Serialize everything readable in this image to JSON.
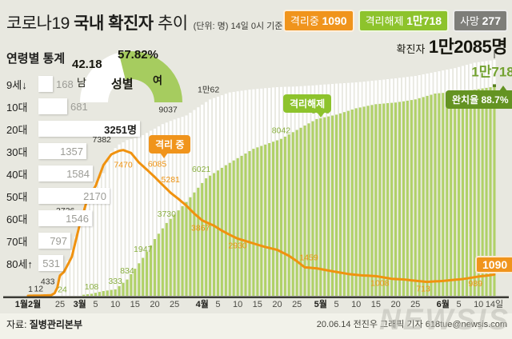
{
  "header": {
    "title": {
      "prefix": "코로나19",
      "bold": "국내 확진자",
      "suffix": "추이"
    },
    "note": "(단위: 명) 14일 0시 기준",
    "badges": [
      {
        "label": "격리중",
        "value": "1090",
        "color": "#f0941c"
      },
      {
        "label": "격리해제",
        "value": "1만718",
        "color": "#8dc32c"
      },
      {
        "label": "사망",
        "value": "277",
        "color": "#7e7e79"
      }
    ],
    "total_label": "확진자",
    "total_value": "1만2085명"
  },
  "gender": {
    "title": "성별",
    "male_label": "남",
    "male_value": "42.18",
    "male_pct": 42.18,
    "female_label": "여",
    "female_value": "57.82%",
    "female_pct": 57.82,
    "female_color": "#a6cc5f",
    "male_color": "#ffffff"
  },
  "age_panel": {
    "title": "연령별 통계",
    "max": 3251,
    "rows": [
      {
        "label": "9세↓",
        "value": "168",
        "num": 168,
        "outside": true
      },
      {
        "label": "10대",
        "value": "681",
        "num": 681,
        "outside": true
      },
      {
        "label": "20대",
        "value": "3251명",
        "num": 3251,
        "highlight": true
      },
      {
        "label": "30대",
        "value": "1357",
        "num": 1357
      },
      {
        "label": "40대",
        "value": "1584",
        "num": 1584
      },
      {
        "label": "50대",
        "value": "2170",
        "num": 2170
      },
      {
        "label": "60대",
        "value": "1546",
        "num": 1546
      },
      {
        "label": "70대",
        "value": "797",
        "num": 797
      },
      {
        "label": "80세↑",
        "value": "531",
        "num": 531
      }
    ]
  },
  "chart_data": {
    "type": "combo",
    "unit": "명",
    "y_max": 12085,
    "x_start": "1월20일",
    "x_end": "6월14일(0시 기준)",
    "ticks": [
      {
        "label": "1월2월",
        "day": 0,
        "month": true
      },
      {
        "label": "25",
        "day": 36
      },
      {
        "label": "3월",
        "day": 41,
        "month": true
      },
      {
        "label": "5",
        "day": 45
      },
      {
        "label": "10",
        "day": 50
      },
      {
        "label": "15",
        "day": 55
      },
      {
        "label": "20",
        "day": 60
      },
      {
        "label": "25",
        "day": 65
      },
      {
        "label": "4월",
        "day": 72,
        "month": true
      },
      {
        "label": "5",
        "day": 76
      },
      {
        "label": "10",
        "day": 81
      },
      {
        "label": "15",
        "day": 86
      },
      {
        "label": "20",
        "day": 91
      },
      {
        "label": "25",
        "day": 96
      },
      {
        "label": "5월",
        "day": 102,
        "month": true
      },
      {
        "label": "5",
        "day": 106
      },
      {
        "label": "10",
        "day": 111
      },
      {
        "label": "15",
        "day": 116
      },
      {
        "label": "20",
        "day": 121
      },
      {
        "label": "25",
        "day": 126
      },
      {
        "label": "6월",
        "day": 133,
        "month": true
      },
      {
        "label": "5",
        "day": 137
      },
      {
        "label": "10",
        "day": 142
      },
      {
        "label": "14일",
        "day": 146
      }
    ],
    "series": [
      {
        "name": "확진자 누적",
        "kind": "bar",
        "color": "#ffffff",
        "start_day": 30,
        "anchors": [
          [
            0,
            1
          ],
          [
            12,
            12
          ],
          [
            26,
            28
          ],
          [
            29,
            31
          ],
          [
            31,
            204
          ],
          [
            33,
            433
          ],
          [
            35,
            893
          ],
          [
            36,
            977
          ],
          [
            37,
            1261
          ],
          [
            39,
            2337
          ],
          [
            41,
            3736
          ],
          [
            43,
            5186
          ],
          [
            45,
            5766
          ],
          [
            47,
            6284
          ],
          [
            49,
            7382
          ],
          [
            51,
            7755
          ],
          [
            53,
            7979
          ],
          [
            55,
            8086
          ],
          [
            57,
            8236
          ],
          [
            60,
            8565
          ],
          [
            62,
            8799
          ],
          [
            65,
            9037
          ],
          [
            68,
            9241
          ],
          [
            71,
            9661
          ],
          [
            74,
            10062
          ],
          [
            79,
            10423
          ],
          [
            84,
            10564
          ],
          [
            91,
            10694
          ],
          [
            96,
            10728
          ],
          [
            101,
            10793
          ],
          [
            106,
            10874
          ],
          [
            111,
            10936
          ],
          [
            116,
            11037
          ],
          [
            121,
            11142
          ],
          [
            126,
            11265
          ],
          [
            131,
            11468
          ],
          [
            136,
            11668
          ],
          [
            141,
            11947
          ],
          [
            146,
            12085
          ]
        ],
        "labels": [
          {
            "day": 0,
            "v": 1,
            "text": "1",
            "dx": 3,
            "dy": -5
          },
          {
            "day": 12,
            "v": 12,
            "text": "12",
            "dx": 0,
            "dy": -5
          },
          {
            "day": 33,
            "v": 433,
            "text": "433",
            "dx": -12,
            "dy": -4
          },
          {
            "day": 37,
            "v": 1261,
            "text": "1261",
            "dx": -21,
            "dy": -7
          },
          {
            "day": 41,
            "v": 3736,
            "text": "3736",
            "dx": -18,
            "dy": -12
          },
          {
            "day": 45,
            "v": 5766,
            "text": "5766",
            "dx": -24,
            "dy": -12
          },
          {
            "day": 49,
            "v": 7382,
            "text": "7382",
            "dx": -12,
            "dy": -12
          },
          {
            "day": 55,
            "v": 8086,
            "text": "8086",
            "dx": -14,
            "dy": -9
          },
          {
            "day": 65,
            "v": 9037,
            "text": "9037",
            "dx": -8,
            "dy": -9
          },
          {
            "day": 74,
            "v": 10062,
            "text": "1만62",
            "dx": -2,
            "dy": -9
          }
        ]
      },
      {
        "name": "격리해제 누적",
        "kind": "bar",
        "color": "#b0d168",
        "start_day": 35,
        "anchors": [
          [
            35,
            17
          ],
          [
            36,
            24
          ],
          [
            41,
            30
          ],
          [
            44,
            108
          ],
          [
            47,
            247
          ],
          [
            50,
            333
          ],
          [
            53,
            834
          ],
          [
            57,
            1947
          ],
          [
            60,
            2909
          ],
          [
            63,
            3730
          ],
          [
            68,
            4811
          ],
          [
            73,
            6021
          ],
          [
            78,
            6694
          ],
          [
            85,
            7534
          ],
          [
            92,
            8042
          ],
          [
            96,
            8501
          ],
          [
            101,
            9059
          ],
          [
            106,
            9283
          ],
          [
            111,
            9610
          ],
          [
            116,
            9821
          ],
          [
            121,
            9904
          ],
          [
            126,
            10066
          ],
          [
            131,
            10363
          ],
          [
            136,
            10446
          ],
          [
            141,
            10563
          ],
          [
            146,
            10718
          ]
        ],
        "labels": [
          {
            "day": 37,
            "v": 24,
            "text": "24",
            "dx": -2,
            "dy": -4
          },
          {
            "day": 44,
            "v": 130,
            "text": "108",
            "dx": 0,
            "dy": -5
          },
          {
            "day": 50,
            "v": 400,
            "text": "333",
            "dx": 0,
            "dy": -5
          },
          {
            "day": 53,
            "v": 950,
            "text": "834",
            "dx": 0,
            "dy": -5
          },
          {
            "day": 57,
            "v": 2050,
            "text": "1947",
            "dx": 0,
            "dy": -5
          },
          {
            "day": 63,
            "v": 3800,
            "text": "3730",
            "dx": 0,
            "dy": -6
          },
          {
            "day": 73,
            "v": 6100,
            "text": "6021",
            "dx": -6,
            "dy": -6
          },
          {
            "day": 92,
            "v": 8100,
            "text": "8042",
            "dx": 0,
            "dy": -6
          },
          {
            "day": 101,
            "v": 9100,
            "text": "9059",
            "dx": 5,
            "dy": -6
          },
          {
            "day": 146,
            "v": 10718,
            "text": "1만718",
            "dx": -2,
            "dy": -13,
            "big": true,
            "anchor": "end"
          }
        ]
      },
      {
        "name": "격리중",
        "kind": "line",
        "color": "#f0920f",
        "anchors": [
          [
            0,
            1
          ],
          [
            12,
            12
          ],
          [
            26,
            28
          ],
          [
            30,
            140
          ],
          [
            33,
            420
          ],
          [
            35,
            870
          ],
          [
            37,
            1220
          ],
          [
            39,
            2000
          ],
          [
            41,
            3654
          ],
          [
            43,
            5000
          ],
          [
            45,
            5621
          ],
          [
            47,
            6700
          ],
          [
            49,
            7250
          ],
          [
            51,
            7430
          ],
          [
            52,
            7470
          ],
          [
            54,
            7320
          ],
          [
            56,
            6830
          ],
          [
            58,
            6463
          ],
          [
            60,
            6085
          ],
          [
            62,
            5684
          ],
          [
            64,
            5281
          ],
          [
            66,
            4966
          ],
          [
            68,
            4620
          ],
          [
            70,
            4216
          ],
          [
            72,
            3867
          ],
          [
            75,
            3591
          ],
          [
            77,
            3340
          ],
          [
            79,
            3125
          ],
          [
            81,
            2930
          ],
          [
            84,
            2750
          ],
          [
            86,
            2620
          ],
          [
            88,
            2502
          ],
          [
            91,
            2357
          ],
          [
            94,
            2047
          ],
          [
            96,
            1769
          ],
          [
            98,
            1459
          ],
          [
            101,
            1408
          ],
          [
            105,
            1258
          ],
          [
            109,
            1119
          ],
          [
            112,
            1053
          ],
          [
            116,
            1008
          ],
          [
            120,
            873
          ],
          [
            123,
            840
          ],
          [
            126,
            774
          ],
          [
            129,
            713
          ],
          [
            131,
            742
          ],
          [
            133,
            760
          ],
          [
            136,
            822
          ],
          [
            138,
            860
          ],
          [
            140,
            921
          ],
          [
            142,
            989
          ],
          [
            144,
            1035
          ],
          [
            146,
            1090
          ]
        ],
        "labels": [
          {
            "day": 52,
            "v": 7470,
            "text": "7470",
            "dx": 0,
            "dy": 22,
            "tone": "orange"
          },
          {
            "day": 59,
            "v": 6085,
            "text": "6085",
            "dx": 8,
            "dy": -13,
            "tone": "orange"
          },
          {
            "day": 64,
            "v": 5281,
            "text": "5281",
            "dx": 0,
            "dy": -13,
            "tone": "orange"
          },
          {
            "day": 72,
            "v": 3867,
            "text": "3867",
            "dx": -2,
            "dy": 13,
            "tone": "orange"
          },
          {
            "day": 81,
            "v": 2930,
            "text": "2930",
            "dx": 0,
            "dy": 12,
            "tone": "orange"
          },
          {
            "day": 99,
            "v": 1459,
            "text": "1459",
            "dx": 0,
            "dy": -9,
            "tone": "orange"
          },
          {
            "day": 117,
            "v": 1008,
            "text": "1008",
            "dx": 0,
            "dy": 12,
            "tone": "orange"
          },
          {
            "day": 128,
            "v": 713,
            "text": "713",
            "dx": 0,
            "dy": 12,
            "tone": "orange"
          },
          {
            "day": 142,
            "v": 989,
            "text": "989",
            "dx": -4,
            "dy": 12,
            "tone": "orange"
          }
        ]
      }
    ]
  },
  "callouts": {
    "in_isolation": "격리 중",
    "released": "격리해제",
    "recovery_label": "완치율",
    "recovery_value": "88.7%",
    "final_isolation": "1090"
  },
  "footer": {
    "source_label": "자료:",
    "source_value": "질병관리본부",
    "credit": "20.06.14 전진우 그래픽 기자 618tue@newsis.com",
    "watermark": "NEWSIS"
  }
}
